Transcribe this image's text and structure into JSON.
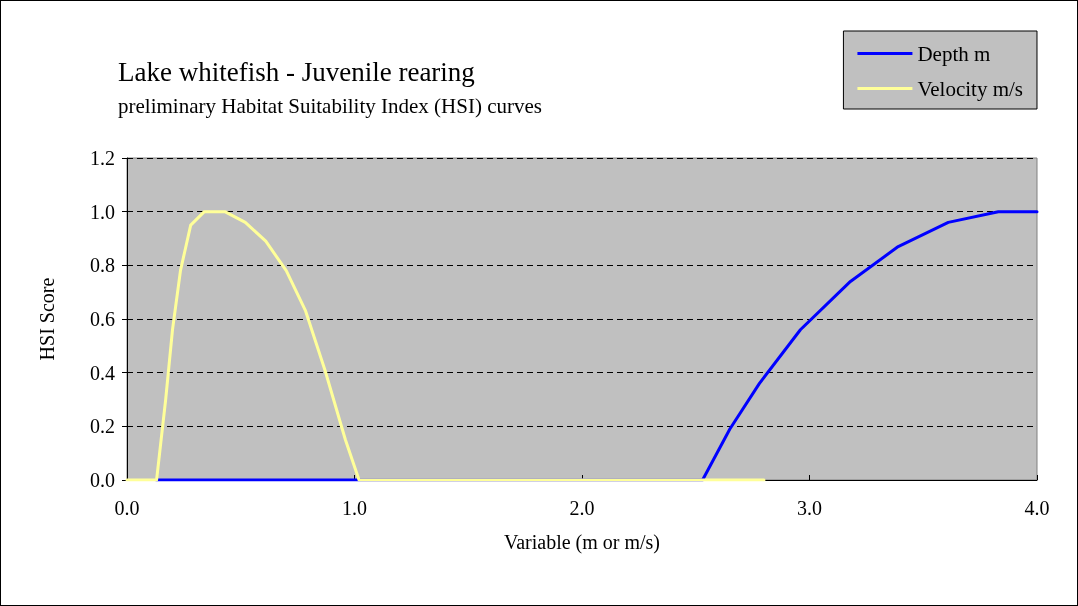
{
  "chart_data": {
    "type": "line",
    "title": "Lake whitefish - Juvenile rearing",
    "subtitle": "preliminary Habitat Suitability Index (HSI) curves",
    "xlabel": "Variable (m or m/s)",
    "ylabel": "HSI Score",
    "xlim": [
      0,
      4
    ],
    "xticks": [
      {
        "value": 0,
        "label": "0.0"
      },
      {
        "value": 1,
        "label": "1.0"
      },
      {
        "value": 2,
        "label": "2.0"
      },
      {
        "value": 3,
        "label": "3.0"
      },
      {
        "value": 4,
        "label": "4.0"
      }
    ],
    "ylim": [
      0,
      1.2
    ],
    "yticks": [
      {
        "value": 0,
        "label": "0.0"
      },
      {
        "value": 0.2,
        "label": "0.2"
      },
      {
        "value": 0.4,
        "label": "0.4"
      },
      {
        "value": 0.6,
        "label": "0.6"
      },
      {
        "value": 0.8,
        "label": "0.8"
      },
      {
        "value": 1,
        "label": "1.0"
      },
      {
        "value": 1.2,
        "label": "1.2"
      }
    ],
    "grid": "y",
    "legend": "top right",
    "marker": "none",
    "line_style": "solid",
    "series": [
      {
        "name": "Depth m",
        "color": "#0000ff",
        "x": [
          0.13,
          1.02,
          2.53,
          2.65,
          2.78,
          2.96,
          3.18,
          3.39,
          3.61,
          3.83,
          4.0
        ],
        "values": [
          0,
          0,
          0,
          0.19,
          0.36,
          0.56,
          0.74,
          0.87,
          0.96,
          1.0,
          1.0
        ]
      },
      {
        "name": "Velocity m/s",
        "color": "#ffff99",
        "x": [
          0,
          0.13,
          0.17,
          0.2,
          0.235,
          0.28,
          0.34,
          0.43,
          0.52,
          0.61,
          0.7,
          0.785,
          0.87,
          0.96,
          1.02,
          2.8
        ],
        "values": [
          0,
          0,
          0.3,
          0.56,
          0.78,
          0.95,
          1.0,
          1.0,
          0.96,
          0.89,
          0.78,
          0.63,
          0.41,
          0.15,
          0,
          0
        ]
      }
    ]
  }
}
